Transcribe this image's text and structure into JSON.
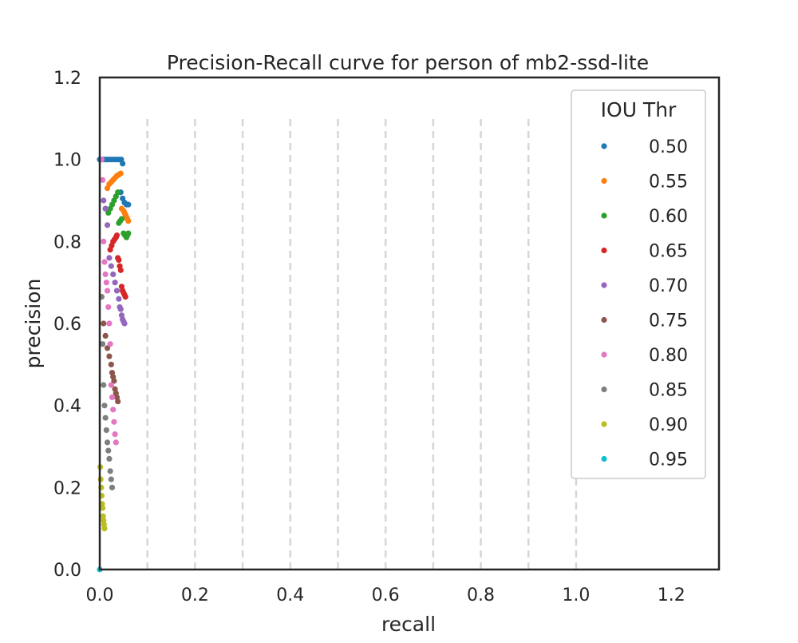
{
  "chart_data": {
    "type": "scatter",
    "title": "Precision-Recall curve for person of mb2-ssd-lite",
    "xlabel": "recall",
    "ylabel": "precision",
    "xlim": [
      0.0,
      1.3
    ],
    "ylim": [
      0.0,
      1.2
    ],
    "x_ticks": [
      "0.0",
      "0.2",
      "0.4",
      "0.6",
      "0.8",
      "1.0",
      "1.2"
    ],
    "y_ticks": [
      "0.0",
      "0.2",
      "0.4",
      "0.6",
      "0.8",
      "1.0",
      "1.2"
    ],
    "grid": "dashed vertical lines at recall 0.1 to 1.0, precision 0 to 1.1",
    "legend": {
      "title": "IOU Thr",
      "placement": "upper-right"
    },
    "series": [
      {
        "name": "0.50",
        "color": "#1f77b4",
        "points": [
          [
            0.0,
            1.0
          ],
          [
            0.005,
            1.0
          ],
          [
            0.01,
            1.0
          ],
          [
            0.015,
            1.0
          ],
          [
            0.02,
            1.0
          ],
          [
            0.025,
            1.0
          ],
          [
            0.03,
            1.0
          ],
          [
            0.035,
            1.0
          ],
          [
            0.04,
            1.0
          ],
          [
            0.045,
            1.0
          ],
          [
            0.048,
            0.99
          ],
          [
            0.044,
            0.92
          ],
          [
            0.048,
            0.905
          ],
          [
            0.052,
            0.895
          ],
          [
            0.056,
            0.89
          ],
          [
            0.06,
            0.89
          ]
        ]
      },
      {
        "name": "0.55",
        "color": "#ff7f0e",
        "points": [
          [
            0.016,
            0.93
          ],
          [
            0.02,
            0.94
          ],
          [
            0.024,
            0.945
          ],
          [
            0.028,
            0.95
          ],
          [
            0.032,
            0.955
          ],
          [
            0.036,
            0.96
          ],
          [
            0.04,
            0.963
          ],
          [
            0.044,
            0.966
          ],
          [
            0.046,
            0.88
          ],
          [
            0.05,
            0.875
          ],
          [
            0.052,
            0.87
          ],
          [
            0.054,
            0.865
          ],
          [
            0.056,
            0.86
          ],
          [
            0.058,
            0.855
          ],
          [
            0.06,
            0.85
          ]
        ]
      },
      {
        "name": "0.60",
        "color": "#2ca02c",
        "points": [
          [
            0.012,
            0.88
          ],
          [
            0.018,
            0.87
          ],
          [
            0.022,
            0.88
          ],
          [
            0.026,
            0.89
          ],
          [
            0.03,
            0.9
          ],
          [
            0.034,
            0.91
          ],
          [
            0.038,
            0.92
          ],
          [
            0.04,
            0.845
          ],
          [
            0.043,
            0.85
          ],
          [
            0.046,
            0.855
          ],
          [
            0.05,
            0.82
          ],
          [
            0.053,
            0.815
          ],
          [
            0.056,
            0.81
          ],
          [
            0.058,
            0.815
          ],
          [
            0.06,
            0.82
          ]
        ]
      },
      {
        "name": "0.65",
        "color": "#d62728",
        "points": [
          [
            0.022,
            0.78
          ],
          [
            0.025,
            0.79
          ],
          [
            0.028,
            0.8
          ],
          [
            0.031,
            0.805
          ],
          [
            0.034,
            0.81
          ],
          [
            0.036,
            0.815
          ],
          [
            0.038,
            0.76
          ],
          [
            0.04,
            0.755
          ],
          [
            0.042,
            0.74
          ],
          [
            0.044,
            0.73
          ],
          [
            0.046,
            0.69
          ],
          [
            0.048,
            0.68
          ],
          [
            0.05,
            0.675
          ],
          [
            0.052,
            0.67
          ],
          [
            0.054,
            0.665
          ]
        ]
      },
      {
        "name": "0.70",
        "color": "#9467bd",
        "points": [
          [
            0.008,
            0.9
          ],
          [
            0.012,
            0.88
          ],
          [
            0.016,
            0.84
          ],
          [
            0.02,
            0.76
          ],
          [
            0.024,
            0.74
          ],
          [
            0.028,
            0.72
          ],
          [
            0.032,
            0.7
          ],
          [
            0.036,
            0.68
          ],
          [
            0.04,
            0.66
          ],
          [
            0.042,
            0.64
          ],
          [
            0.044,
            0.635
          ],
          [
            0.046,
            0.62
          ],
          [
            0.048,
            0.61
          ],
          [
            0.05,
            0.605
          ],
          [
            0.052,
            0.6
          ]
        ]
      },
      {
        "name": "0.75",
        "color": "#8c564b",
        "points": [
          [
            0.008,
            0.6
          ],
          [
            0.012,
            0.57
          ],
          [
            0.016,
            0.54
          ],
          [
            0.02,
            0.52
          ],
          [
            0.024,
            0.5
          ],
          [
            0.026,
            0.48
          ],
          [
            0.028,
            0.47
          ],
          [
            0.03,
            0.46
          ],
          [
            0.032,
            0.44
          ],
          [
            0.034,
            0.43
          ],
          [
            0.036,
            0.42
          ],
          [
            0.038,
            0.41
          ]
        ]
      },
      {
        "name": "0.80",
        "color": "#e377c2",
        "points": [
          [
            0.004,
            1.0
          ],
          [
            0.006,
            0.95
          ],
          [
            0.008,
            0.8
          ],
          [
            0.01,
            0.75
          ],
          [
            0.012,
            0.72
          ],
          [
            0.014,
            0.7
          ],
          [
            0.016,
            0.68
          ],
          [
            0.018,
            0.64
          ],
          [
            0.02,
            0.6
          ],
          [
            0.022,
            0.55
          ],
          [
            0.024,
            0.45
          ],
          [
            0.026,
            0.42
          ],
          [
            0.028,
            0.39
          ],
          [
            0.03,
            0.36
          ],
          [
            0.032,
            0.33
          ],
          [
            0.034,
            0.31
          ]
        ]
      },
      {
        "name": "0.85",
        "color": "#7f7f7f",
        "points": [
          [
            0.004,
            0.665
          ],
          [
            0.006,
            0.55
          ],
          [
            0.008,
            0.45
          ],
          [
            0.01,
            0.4
          ],
          [
            0.012,
            0.37
          ],
          [
            0.014,
            0.34
          ],
          [
            0.016,
            0.31
          ],
          [
            0.018,
            0.29
          ],
          [
            0.02,
            0.27
          ],
          [
            0.022,
            0.24
          ],
          [
            0.024,
            0.22
          ],
          [
            0.026,
            0.2
          ]
        ]
      },
      {
        "name": "0.90",
        "color": "#bcbd22",
        "points": [
          [
            0.001,
            0.25
          ],
          [
            0.002,
            0.22
          ],
          [
            0.003,
            0.2
          ],
          [
            0.004,
            0.18
          ],
          [
            0.005,
            0.16
          ],
          [
            0.006,
            0.15
          ],
          [
            0.007,
            0.13
          ],
          [
            0.008,
            0.12
          ],
          [
            0.009,
            0.11
          ],
          [
            0.01,
            0.1
          ]
        ]
      },
      {
        "name": "0.95",
        "color": "#17becf",
        "points": [
          [
            0.0,
            0.0
          ]
        ]
      }
    ]
  }
}
